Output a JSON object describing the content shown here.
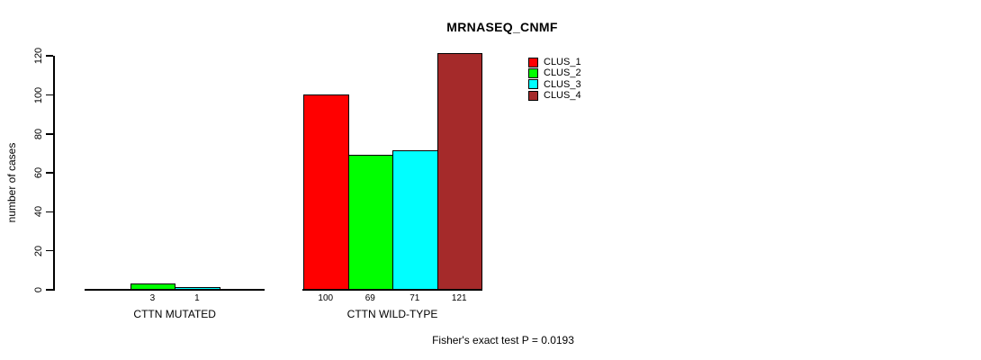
{
  "chart_data": {
    "type": "bar",
    "title": "MRNASEQ_CNMF",
    "xlabel": "",
    "ylabel": "number of cases",
    "ylim": [
      0,
      120
    ],
    "y_ticks": [
      0,
      20,
      40,
      60,
      80,
      100,
      120
    ],
    "grid": false,
    "legend_position": "top-right",
    "bar_value_labels": true,
    "series": [
      {
        "name": "CLUS_1",
        "color": "#FF0000"
      },
      {
        "name": "CLUS_2",
        "color": "#00FF00"
      },
      {
        "name": "CLUS_3",
        "color": "#00FFFF"
      },
      {
        "name": "CLUS_4",
        "color": "#A52A2A"
      }
    ],
    "groups": [
      {
        "label": "CTTN MUTATED",
        "values": {
          "CLUS_2": 3,
          "CLUS_3": 1
        }
      },
      {
        "label": "CTTN WILD-TYPE",
        "values": {
          "CLUS_1": 100,
          "CLUS_2": 69,
          "CLUS_3": 71,
          "CLUS_4": 121
        }
      }
    ],
    "annotation": "Fisher's exact test P = 0.0193"
  }
}
